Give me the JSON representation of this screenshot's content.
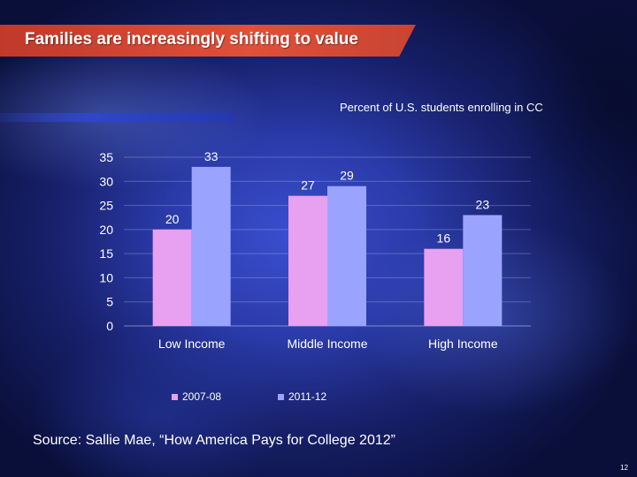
{
  "slide": {
    "title": "Families are increasingly shifting to value",
    "source": "Source:  Sallie Mae, “How America Pays for College 2012”",
    "page_number": "12"
  },
  "colors": {
    "series_2007": "#e8a0f0",
    "series_2011": "#9aa4ff",
    "title_banner": "#d9473a"
  },
  "chart_data": {
    "type": "bar",
    "title": "Percent of U.S. students enrolling in CC",
    "xlabel": "",
    "ylabel": "",
    "categories": [
      "Low Income",
      "Middle Income",
      "High Income"
    ],
    "series": [
      {
        "name": "2007-08",
        "values": [
          20,
          27,
          16
        ]
      },
      {
        "name": "2011-12",
        "values": [
          33,
          29,
          23
        ]
      }
    ],
    "ylim": [
      0,
      35
    ],
    "yticks": [
      0,
      5,
      10,
      15,
      20,
      25,
      30,
      35
    ],
    "grid": true,
    "legend_position": "bottom",
    "data_labels": true
  }
}
